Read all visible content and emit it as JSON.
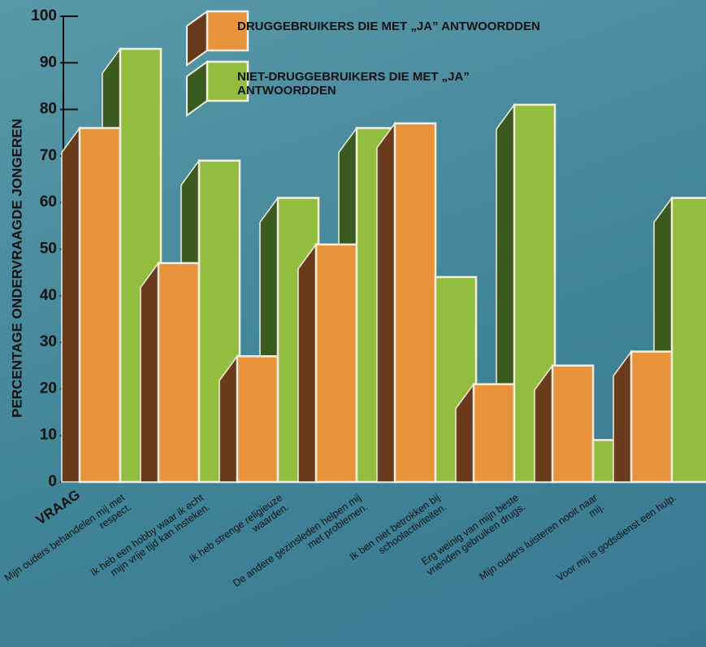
{
  "chart_data": {
    "type": "bar3d",
    "y_label": "PERCENTAGE ONDERVRAAGDE JONGEREN",
    "x_label": "VRAAG",
    "categories": [
      "Mijn ouders behandelen mij met respect.",
      "Ik heb een hobby waar ik echt mijn vrije tijd kan insteken.",
      "Ik heb strenge religieuze waarden.",
      "De andere gezinsleden helpen mij met problemen.",
      "Ik ben niet betrokken bij schoolactiviteiten.",
      "Erg weinig van mijn beste vrienden gebruiken drugs.",
      "Mijn ouders luisteren nooit naar mij.",
      "Voor mij is godsdienst een hulp."
    ],
    "series": [
      {
        "name": "DRUGGEBRUIKERS DIE MET „JA” ANTWOORDDEN",
        "color": "#e8933c",
        "side_color": "#6a3a1c",
        "values": [
          76,
          47,
          27,
          51,
          77,
          21,
          25,
          28
        ]
      },
      {
        "name": "NIET-DRUGGEBRUIKERS DIE MET „JA” ANTWOORDDEN",
        "color": "#93bd3e",
        "side_color": "#3b5a1f",
        "values": [
          93,
          69,
          61,
          76,
          44,
          81,
          9,
          61
        ]
      }
    ],
    "ylim": [
      0,
      100
    ],
    "yticks": [
      0,
      10,
      20,
      30,
      40,
      50,
      60,
      70,
      80,
      90,
      100
    ]
  }
}
